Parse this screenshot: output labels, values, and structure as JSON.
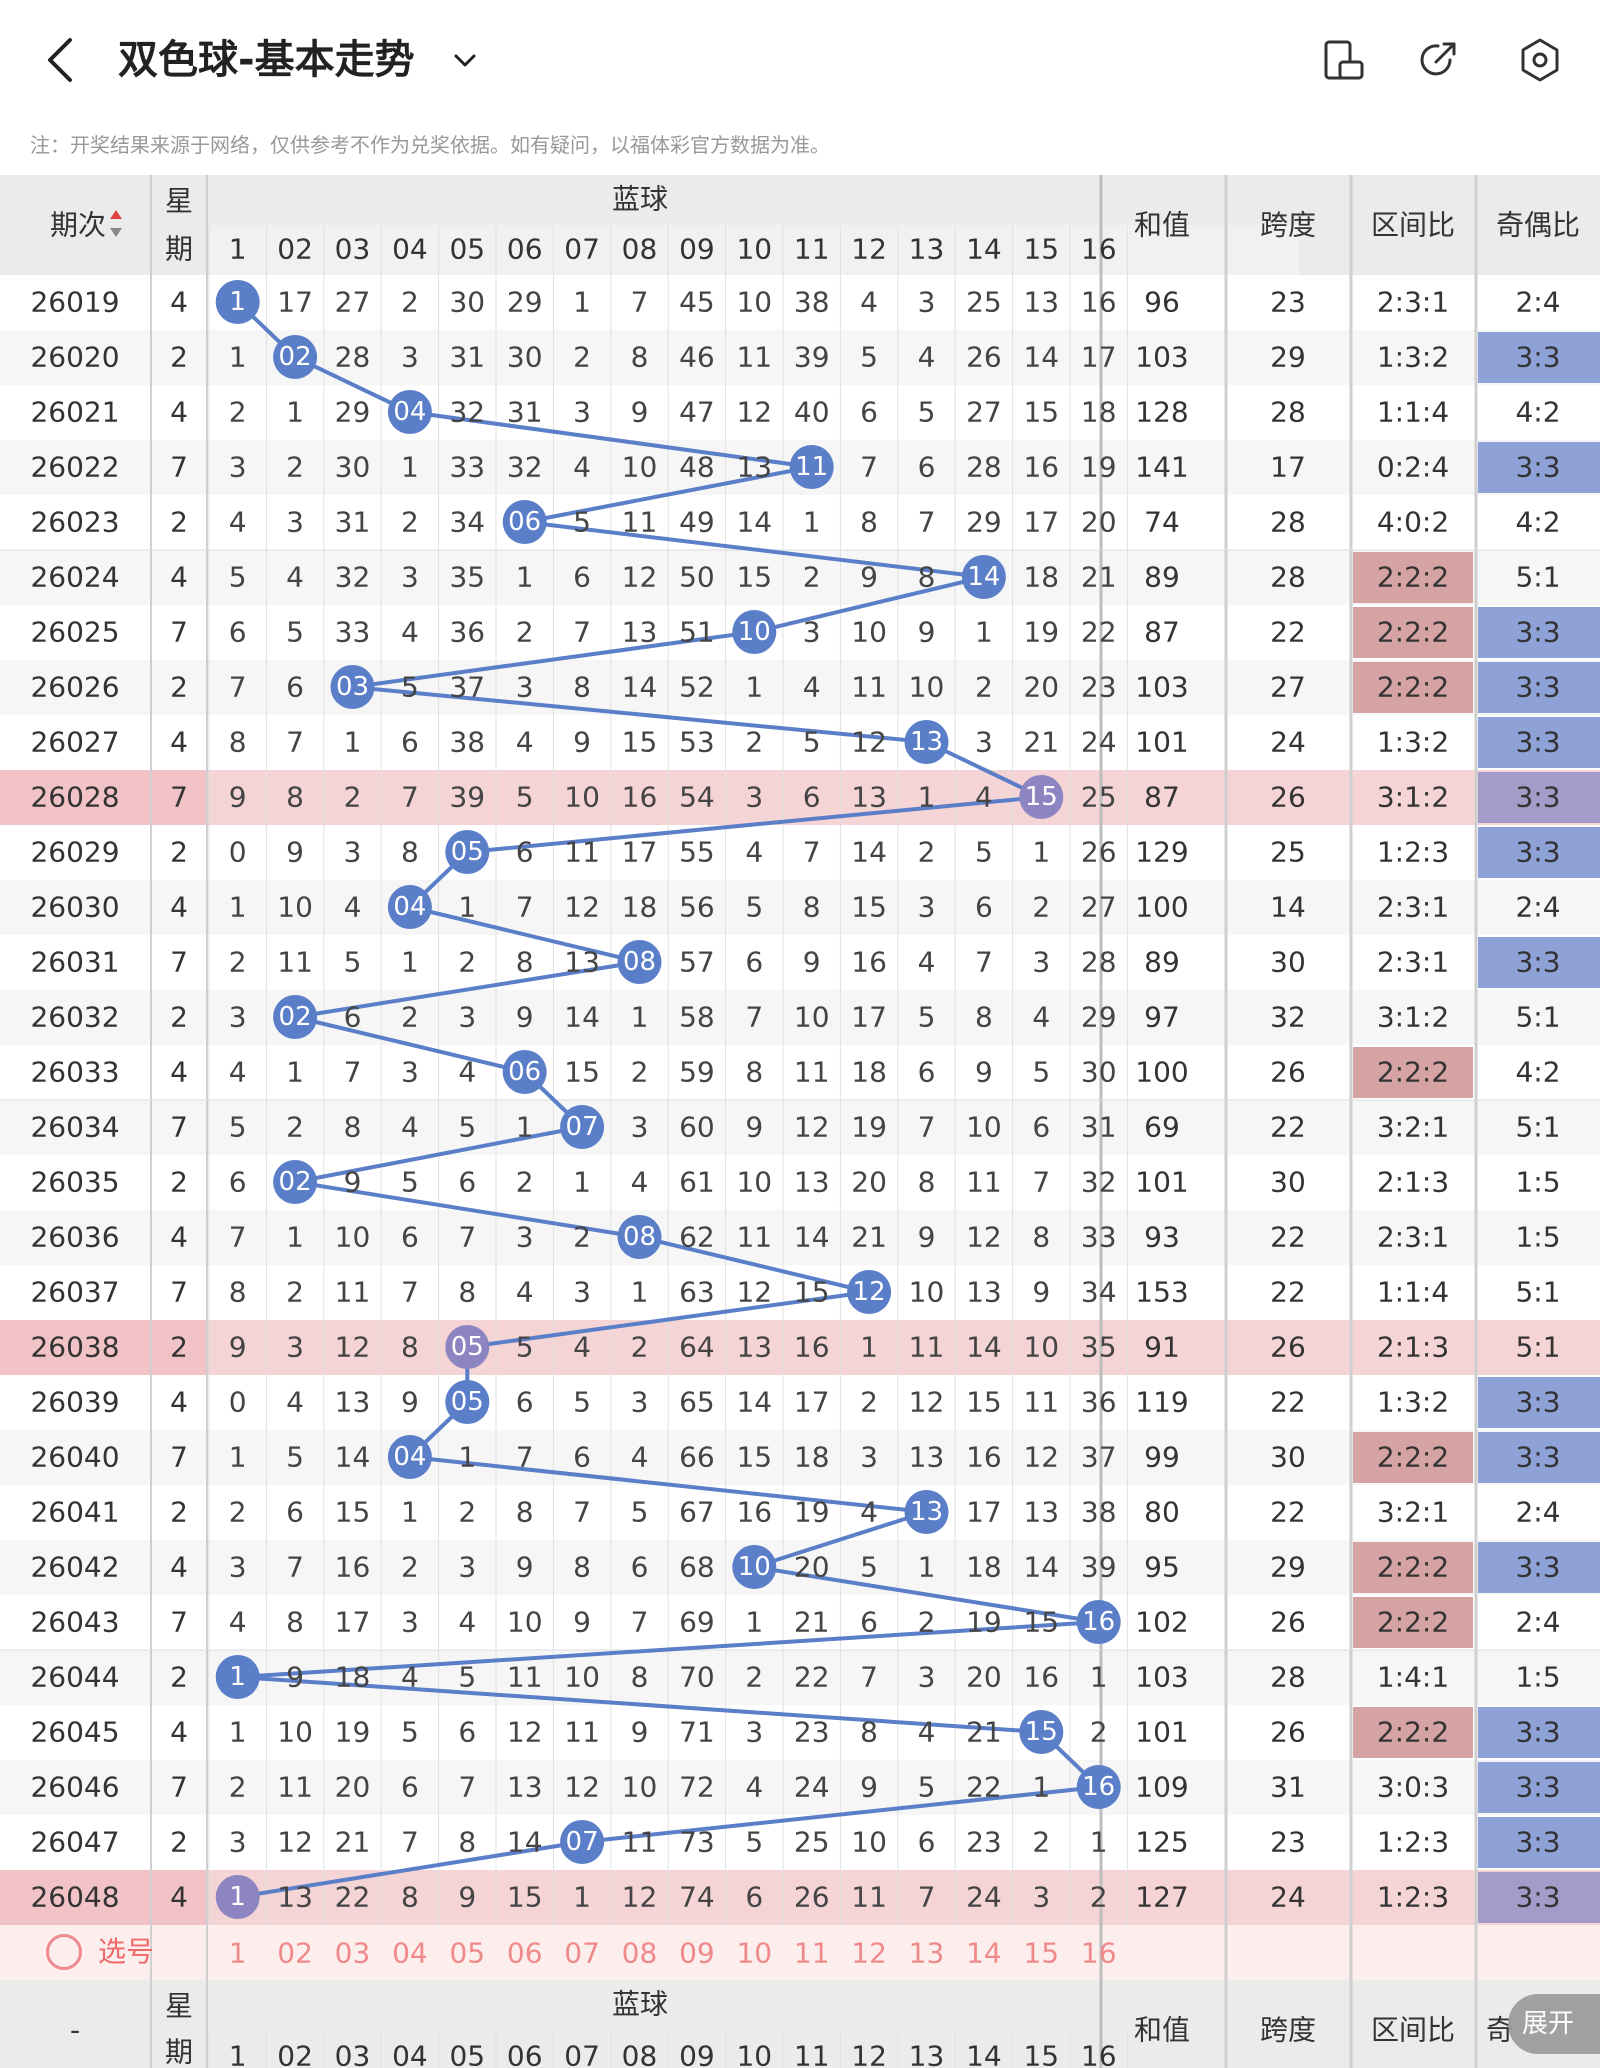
{
  "header": {
    "title": "双色球-基本走势",
    "icons": [
      "back-icon",
      "chevron-down-icon",
      "phone-rotate-icon",
      "share-icon",
      "settings-icon"
    ]
  },
  "notice": "注：开奖结果来源于网络，仅供参考不作为兑奖依据。如有疑问，以福体彩官方数据为准。",
  "table": {
    "col_period": "期次",
    "col_weekday": "星期",
    "blue_group": "蓝球",
    "blue_nums": [
      "1",
      "02",
      "03",
      "04",
      "05",
      "06",
      "07",
      "08",
      "09",
      "10",
      "11",
      "12",
      "13",
      "14",
      "15",
      "16"
    ],
    "col_sum": "和值",
    "col_span": "跨度",
    "col_zone": "区间比",
    "col_parity": "奇偶比",
    "footer_period": "-",
    "footer_parity": "奇"
  },
  "picker_label": "选号",
  "expand_button": "展开",
  "colors": {
    "blue_ball": "#5b7ec9",
    "zone_highlight": "#d6a3a4",
    "parity_highlight": "#8ea2d8",
    "highlight_row": "#f5d4d6",
    "picker_row": "#fdeeee"
  },
  "rows": [
    {
      "period": "26019",
      "week": "4",
      "blue": 1,
      "cells": [
        "1",
        "17",
        "27",
        "2",
        "30",
        "29",
        "1",
        "7",
        "45",
        "10",
        "38",
        "4",
        "3",
        "25",
        "13",
        "16"
      ],
      "sum": "96",
      "span": "23",
      "zone": "2:3:1",
      "parity": "2:4",
      "hl": false,
      "zhl": false,
      "phl": false
    },
    {
      "period": "26020",
      "week": "2",
      "blue": 2,
      "cells": [
        "1",
        "02",
        "28",
        "3",
        "31",
        "30",
        "2",
        "8",
        "46",
        "11",
        "39",
        "5",
        "4",
        "26",
        "14",
        "17"
      ],
      "sum": "103",
      "span": "29",
      "zone": "1:3:2",
      "parity": "3:3",
      "hl": false,
      "zhl": false,
      "phl": true
    },
    {
      "period": "26021",
      "week": "4",
      "blue": 4,
      "cells": [
        "2",
        "1",
        "29",
        "04",
        "32",
        "31",
        "3",
        "9",
        "47",
        "12",
        "40",
        "6",
        "5",
        "27",
        "15",
        "18"
      ],
      "sum": "128",
      "span": "28",
      "zone": "1:1:4",
      "parity": "4:2",
      "hl": false,
      "zhl": false,
      "phl": false
    },
    {
      "period": "26022",
      "week": "7",
      "blue": 11,
      "cells": [
        "3",
        "2",
        "30",
        "1",
        "33",
        "32",
        "4",
        "10",
        "48",
        "13",
        "11",
        "7",
        "6",
        "28",
        "16",
        "19"
      ],
      "sum": "141",
      "span": "17",
      "zone": "0:2:4",
      "parity": "3:3",
      "hl": false,
      "zhl": false,
      "phl": true
    },
    {
      "period": "26023",
      "week": "2",
      "blue": 6,
      "cells": [
        "4",
        "3",
        "31",
        "2",
        "34",
        "06",
        "5",
        "11",
        "49",
        "14",
        "1",
        "8",
        "7",
        "29",
        "17",
        "20"
      ],
      "sum": "74",
      "span": "28",
      "zone": "4:0:2",
      "parity": "4:2",
      "hl": false,
      "zhl": false,
      "phl": false
    },
    {
      "period": "26024",
      "week": "4",
      "blue": 14,
      "cells": [
        "5",
        "4",
        "32",
        "3",
        "35",
        "1",
        "6",
        "12",
        "50",
        "15",
        "2",
        "9",
        "8",
        "14",
        "18",
        "21"
      ],
      "sum": "89",
      "span": "28",
      "zone": "2:2:2",
      "parity": "5:1",
      "hl": false,
      "zhl": true,
      "phl": false
    },
    {
      "period": "26025",
      "week": "7",
      "blue": 10,
      "cells": [
        "6",
        "5",
        "33",
        "4",
        "36",
        "2",
        "7",
        "13",
        "51",
        "10",
        "3",
        "10",
        "9",
        "1",
        "19",
        "22"
      ],
      "sum": "87",
      "span": "22",
      "zone": "2:2:2",
      "parity": "3:3",
      "hl": false,
      "zhl": true,
      "phl": true
    },
    {
      "period": "26026",
      "week": "2",
      "blue": 3,
      "cells": [
        "7",
        "6",
        "03",
        "5",
        "37",
        "3",
        "8",
        "14",
        "52",
        "1",
        "4",
        "11",
        "10",
        "2",
        "20",
        "23"
      ],
      "sum": "103",
      "span": "27",
      "zone": "2:2:2",
      "parity": "3:3",
      "hl": false,
      "zhl": true,
      "phl": true
    },
    {
      "period": "26027",
      "week": "4",
      "blue": 13,
      "cells": [
        "8",
        "7",
        "1",
        "6",
        "38",
        "4",
        "9",
        "15",
        "53",
        "2",
        "5",
        "12",
        "13",
        "3",
        "21",
        "24"
      ],
      "sum": "101",
      "span": "24",
      "zone": "1:3:2",
      "parity": "3:3",
      "hl": false,
      "zhl": false,
      "phl": true
    },
    {
      "period": "26028",
      "week": "7",
      "blue": 15,
      "cells": [
        "9",
        "8",
        "2",
        "7",
        "39",
        "5",
        "10",
        "16",
        "54",
        "3",
        "6",
        "13",
        "1",
        "4",
        "15",
        "25"
      ],
      "sum": "87",
      "span": "26",
      "zone": "3:1:2",
      "parity": "3:3",
      "hl": true,
      "zhl": false,
      "phl": true
    },
    {
      "period": "26029",
      "week": "2",
      "blue": 5,
      "cells": [
        "0",
        "9",
        "3",
        "8",
        "05",
        "6",
        "11",
        "17",
        "55",
        "4",
        "7",
        "14",
        "2",
        "5",
        "1",
        "26"
      ],
      "sum": "129",
      "span": "25",
      "zone": "1:2:3",
      "parity": "3:3",
      "hl": false,
      "zhl": false,
      "phl": true
    },
    {
      "period": "26030",
      "week": "4",
      "blue": 4,
      "cells": [
        "1",
        "10",
        "4",
        "04",
        "1",
        "7",
        "12",
        "18",
        "56",
        "5",
        "8",
        "15",
        "3",
        "6",
        "2",
        "27"
      ],
      "sum": "100",
      "span": "14",
      "zone": "2:3:1",
      "parity": "2:4",
      "hl": false,
      "zhl": false,
      "phl": false
    },
    {
      "period": "26031",
      "week": "7",
      "blue": 8,
      "cells": [
        "2",
        "11",
        "5",
        "1",
        "2",
        "8",
        "13",
        "08",
        "57",
        "6",
        "9",
        "16",
        "4",
        "7",
        "3",
        "28"
      ],
      "sum": "89",
      "span": "30",
      "zone": "2:3:1",
      "parity": "3:3",
      "hl": false,
      "zhl": false,
      "phl": true
    },
    {
      "period": "26032",
      "week": "2",
      "blue": 2,
      "cells": [
        "3",
        "02",
        "6",
        "2",
        "3",
        "9",
        "14",
        "1",
        "58",
        "7",
        "10",
        "17",
        "5",
        "8",
        "4",
        "29"
      ],
      "sum": "97",
      "span": "32",
      "zone": "3:1:2",
      "parity": "5:1",
      "hl": false,
      "zhl": false,
      "phl": false
    },
    {
      "period": "26033",
      "week": "4",
      "blue": 6,
      "cells": [
        "4",
        "1",
        "7",
        "3",
        "4",
        "06",
        "15",
        "2",
        "59",
        "8",
        "11",
        "18",
        "6",
        "9",
        "5",
        "30"
      ],
      "sum": "100",
      "span": "26",
      "zone": "2:2:2",
      "parity": "4:2",
      "hl": false,
      "zhl": true,
      "phl": false
    },
    {
      "period": "26034",
      "week": "7",
      "blue": 7,
      "cells": [
        "5",
        "2",
        "8",
        "4",
        "5",
        "1",
        "07",
        "3",
        "60",
        "9",
        "12",
        "19",
        "7",
        "10",
        "6",
        "31"
      ],
      "sum": "69",
      "span": "22",
      "zone": "3:2:1",
      "parity": "5:1",
      "hl": false,
      "zhl": false,
      "phl": false
    },
    {
      "period": "26035",
      "week": "2",
      "blue": 2,
      "cells": [
        "6",
        "02",
        "9",
        "5",
        "6",
        "2",
        "1",
        "4",
        "61",
        "10",
        "13",
        "20",
        "8",
        "11",
        "7",
        "32"
      ],
      "sum": "101",
      "span": "30",
      "zone": "2:1:3",
      "parity": "1:5",
      "hl": false,
      "zhl": false,
      "phl": false
    },
    {
      "period": "26036",
      "week": "4",
      "blue": 8,
      "cells": [
        "7",
        "1",
        "10",
        "6",
        "7",
        "3",
        "2",
        "08",
        "62",
        "11",
        "14",
        "21",
        "9",
        "12",
        "8",
        "33"
      ],
      "sum": "93",
      "span": "22",
      "zone": "2:3:1",
      "parity": "1:5",
      "hl": false,
      "zhl": false,
      "phl": false
    },
    {
      "period": "26037",
      "week": "7",
      "blue": 12,
      "cells": [
        "8",
        "2",
        "11",
        "7",
        "8",
        "4",
        "3",
        "1",
        "63",
        "12",
        "15",
        "12",
        "10",
        "13",
        "9",
        "34"
      ],
      "sum": "153",
      "span": "22",
      "zone": "1:1:4",
      "parity": "5:1",
      "hl": false,
      "zhl": false,
      "phl": false
    },
    {
      "period": "26038",
      "week": "2",
      "blue": 5,
      "cells": [
        "9",
        "3",
        "12",
        "8",
        "05",
        "5",
        "4",
        "2",
        "64",
        "13",
        "16",
        "1",
        "11",
        "14",
        "10",
        "35"
      ],
      "sum": "91",
      "span": "26",
      "zone": "2:1:3",
      "parity": "5:1",
      "hl": true,
      "zhl": false,
      "phl": false
    },
    {
      "period": "26039",
      "week": "4",
      "blue": 5,
      "cells": [
        "0",
        "4",
        "13",
        "9",
        "05",
        "6",
        "5",
        "3",
        "65",
        "14",
        "17",
        "2",
        "12",
        "15",
        "11",
        "36"
      ],
      "sum": "119",
      "span": "22",
      "zone": "1:3:2",
      "parity": "3:3",
      "hl": false,
      "zhl": false,
      "phl": true
    },
    {
      "period": "26040",
      "week": "7",
      "blue": 4,
      "cells": [
        "1",
        "5",
        "14",
        "04",
        "1",
        "7",
        "6",
        "4",
        "66",
        "15",
        "18",
        "3",
        "13",
        "16",
        "12",
        "37"
      ],
      "sum": "99",
      "span": "30",
      "zone": "2:2:2",
      "parity": "3:3",
      "hl": false,
      "zhl": true,
      "phl": true
    },
    {
      "period": "26041",
      "week": "2",
      "blue": 13,
      "cells": [
        "2",
        "6",
        "15",
        "1",
        "2",
        "8",
        "7",
        "5",
        "67",
        "16",
        "19",
        "4",
        "13",
        "17",
        "13",
        "38"
      ],
      "sum": "80",
      "span": "22",
      "zone": "3:2:1",
      "parity": "2:4",
      "hl": false,
      "zhl": false,
      "phl": false
    },
    {
      "period": "26042",
      "week": "4",
      "blue": 10,
      "cells": [
        "3",
        "7",
        "16",
        "2",
        "3",
        "9",
        "8",
        "6",
        "68",
        "10",
        "20",
        "5",
        "1",
        "18",
        "14",
        "39"
      ],
      "sum": "95",
      "span": "29",
      "zone": "2:2:2",
      "parity": "3:3",
      "hl": false,
      "zhl": true,
      "phl": true
    },
    {
      "period": "26043",
      "week": "7",
      "blue": 16,
      "cells": [
        "4",
        "8",
        "17",
        "3",
        "4",
        "10",
        "9",
        "7",
        "69",
        "1",
        "21",
        "6",
        "2",
        "19",
        "15",
        "16"
      ],
      "sum": "102",
      "span": "26",
      "zone": "2:2:2",
      "parity": "2:4",
      "hl": false,
      "zhl": true,
      "phl": false
    },
    {
      "period": "26044",
      "week": "2",
      "blue": 1,
      "cells": [
        "1",
        "9",
        "18",
        "4",
        "5",
        "11",
        "10",
        "8",
        "70",
        "2",
        "22",
        "7",
        "3",
        "20",
        "16",
        "1"
      ],
      "sum": "103",
      "span": "28",
      "zone": "1:4:1",
      "parity": "1:5",
      "hl": false,
      "zhl": false,
      "phl": false
    },
    {
      "period": "26045",
      "week": "4",
      "blue": 15,
      "cells": [
        "1",
        "10",
        "19",
        "5",
        "6",
        "12",
        "11",
        "9",
        "71",
        "3",
        "23",
        "8",
        "4",
        "21",
        "15",
        "2"
      ],
      "sum": "101",
      "span": "26",
      "zone": "2:2:2",
      "parity": "3:3",
      "hl": false,
      "zhl": true,
      "phl": true
    },
    {
      "period": "26046",
      "week": "7",
      "blue": 16,
      "cells": [
        "2",
        "11",
        "20",
        "6",
        "7",
        "13",
        "12",
        "10",
        "72",
        "4",
        "24",
        "9",
        "5",
        "22",
        "1",
        "16"
      ],
      "sum": "109",
      "span": "31",
      "zone": "3:0:3",
      "parity": "3:3",
      "hl": false,
      "zhl": false,
      "phl": true
    },
    {
      "period": "26047",
      "week": "2",
      "blue": 7,
      "cells": [
        "3",
        "12",
        "21",
        "7",
        "8",
        "14",
        "07",
        "11",
        "73",
        "5",
        "25",
        "10",
        "6",
        "23",
        "2",
        "1"
      ],
      "sum": "125",
      "span": "23",
      "zone": "1:2:3",
      "parity": "3:3",
      "hl": false,
      "zhl": false,
      "phl": true
    },
    {
      "period": "26048",
      "week": "4",
      "blue": 1,
      "cells": [
        "1",
        "13",
        "22",
        "8",
        "9",
        "15",
        "1",
        "12",
        "74",
        "6",
        "26",
        "11",
        "7",
        "24",
        "3",
        "2"
      ],
      "sum": "127",
      "span": "24",
      "zone": "1:2:3",
      "parity": "3:3",
      "hl": true,
      "zhl": false,
      "phl": true
    }
  ]
}
